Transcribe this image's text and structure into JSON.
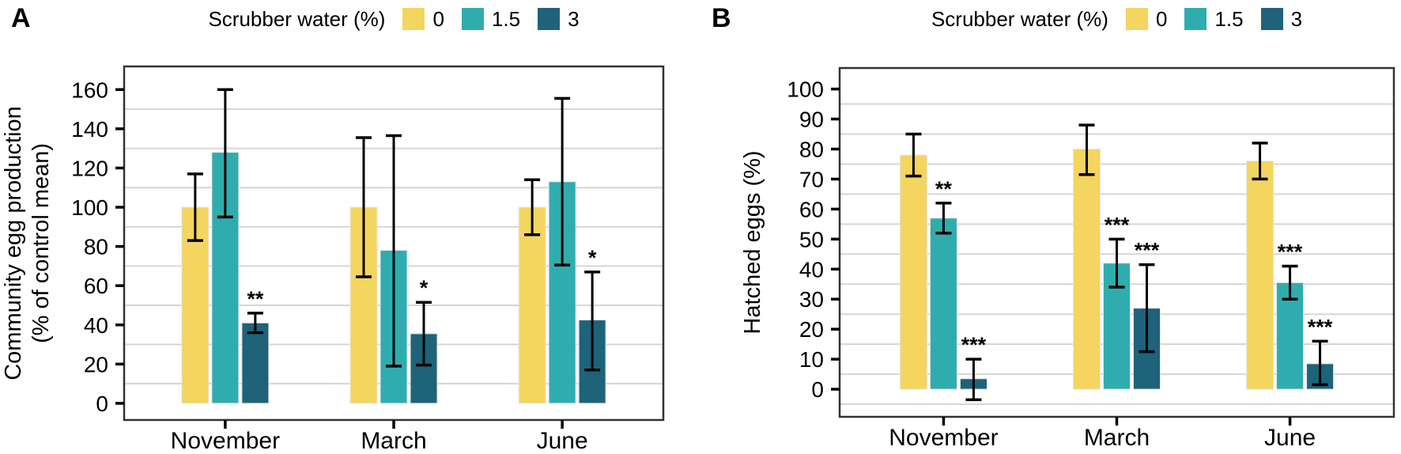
{
  "figure": {
    "background": "#FFFFFF"
  },
  "style": {
    "gridline_color": "#D5D5D5",
    "border_color": "#333333",
    "error_bar_color": "#000000",
    "text_color": "#000000",
    "bar_outline_color": "#E6E6E6",
    "bar_colors": {
      "0": "#F3D55F",
      "1.5": "#2FADAE",
      "3": "#1E6379"
    }
  },
  "chart_data": [
    {
      "panel_label": "A",
      "type": "bar",
      "title": "",
      "xlabel": "",
      "ylabel_lines": [
        "Community egg production",
        "(% of control mean)"
      ],
      "categories": [
        "November",
        "March",
        "June"
      ],
      "ylim": [
        -8.5,
        171.8
      ],
      "yticks": [
        0,
        20,
        40,
        60,
        80,
        100,
        120,
        140,
        160
      ],
      "minor_gridlines": [
        10,
        30,
        50,
        70,
        90,
        110,
        130,
        150
      ],
      "grid": "minor-horizontal-only",
      "legend_position": "top-center",
      "legend": {
        "title": "Scrubber water (%)",
        "entries": [
          {
            "label": "0",
            "color": "#F3D55F"
          },
          {
            "label": "1.5",
            "color": "#2FADAE"
          },
          {
            "label": "3",
            "color": "#1E6379"
          }
        ]
      },
      "series": [
        {
          "name": "0",
          "color": "#F3D55F",
          "values": [
            100,
            100,
            100
          ],
          "err_low": [
            83,
            64.5,
            86
          ],
          "err_high": [
            117,
            135.5,
            114
          ],
          "significance": [
            "",
            "",
            ""
          ]
        },
        {
          "name": "1.5",
          "color": "#2FADAE",
          "values": [
            128,
            78,
            113
          ],
          "err_low": [
            95,
            19,
            70.5
          ],
          "err_high": [
            160,
            136.5,
            155.5
          ],
          "significance": [
            "",
            "",
            ""
          ]
        },
        {
          "name": "3",
          "color": "#1E6379",
          "values": [
            41,
            35.5,
            42.5
          ],
          "err_low": [
            36,
            19.5,
            17
          ],
          "err_high": [
            46,
            51.5,
            67
          ],
          "significance": [
            "**",
            "*",
            "*"
          ]
        }
      ]
    },
    {
      "panel_label": "B",
      "type": "bar",
      "title": "",
      "xlabel": "",
      "ylabel_lines": [
        "Hatched eggs (%)"
      ],
      "categories": [
        "November",
        "March",
        "June"
      ],
      "ylim": [
        -9.2,
        107
      ],
      "yticks": [
        0,
        10,
        20,
        30,
        40,
        50,
        60,
        70,
        80,
        90,
        100
      ],
      "minor_gridlines": [
        -5,
        5,
        15,
        25,
        35,
        45,
        55,
        65,
        75,
        85,
        95
      ],
      "grid": "minor-horizontal-only",
      "legend_position": "top-center",
      "legend": {
        "title": "Scrubber water (%)",
        "entries": [
          {
            "label": "0",
            "color": "#F3D55F"
          },
          {
            "label": "1.5",
            "color": "#2FADAE"
          },
          {
            "label": "3",
            "color": "#1E6379"
          }
        ]
      },
      "series": [
        {
          "name": "0",
          "color": "#F3D55F",
          "values": [
            78,
            80,
            76
          ],
          "err_low": [
            71,
            71.5,
            70
          ],
          "err_high": [
            85,
            88,
            82
          ],
          "significance": [
            "",
            "",
            ""
          ]
        },
        {
          "name": "1.5",
          "color": "#2FADAE",
          "values": [
            57,
            42,
            35.5
          ],
          "err_low": [
            52,
            34,
            30
          ],
          "err_high": [
            62,
            50,
            41
          ],
          "significance": [
            "**",
            "***",
            "***"
          ]
        },
        {
          "name": "3",
          "color": "#1E6379",
          "values": [
            3.5,
            27,
            8.5
          ],
          "err_low": [
            -3.5,
            12.5,
            1.5
          ],
          "err_high": [
            10,
            41.5,
            16
          ],
          "significance": [
            "***",
            "***",
            "***"
          ]
        }
      ]
    }
  ]
}
